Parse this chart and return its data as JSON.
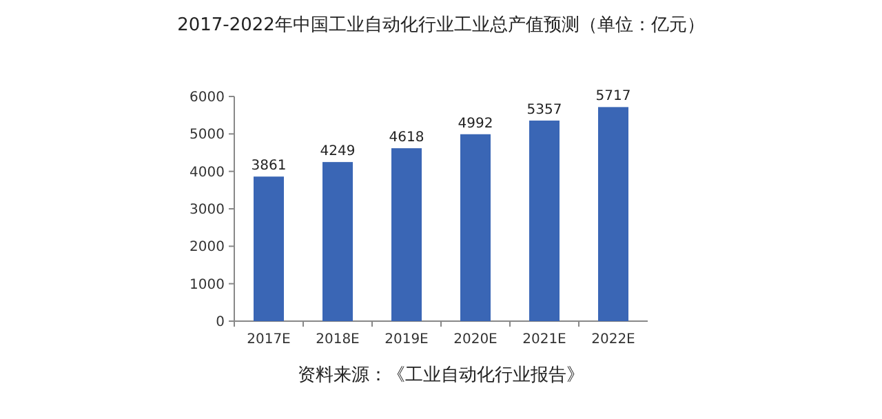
{
  "chart_data": {
    "type": "bar",
    "title": "2017-2022年中国工业自动化行业工业总产值预测（单位：亿元）",
    "categories": [
      "2017E",
      "2018E",
      "2019E",
      "2020E",
      "2021E",
      "2022E"
    ],
    "values": [
      3861,
      4249,
      4618,
      4992,
      5357,
      5717
    ],
    "color": "#3a66b5",
    "ylim": [
      0,
      6000
    ],
    "yticks": [
      0,
      1000,
      2000,
      3000,
      4000,
      5000,
      6000
    ],
    "grid": false,
    "data_labels": true,
    "annotations": [
      "资料来源：《工业自动化行业报告》"
    ]
  }
}
